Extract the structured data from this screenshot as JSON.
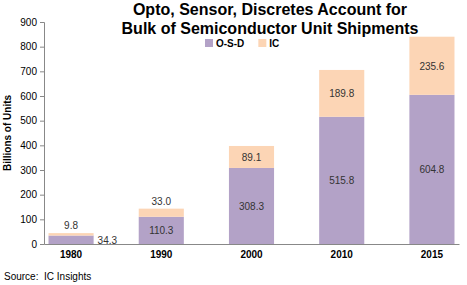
{
  "chart_data": {
    "type": "bar",
    "title": "Opto, Sensor, Discretes Account for Bulk of Semiconductor Unit Shipments",
    "y_label": "Billions of Units",
    "annotations": [
      "Source:  IC Insights"
    ],
    "categories": [
      "1980",
      "1990",
      "2000",
      "2010",
      "2015"
    ],
    "series": [
      {
        "name": "O-S-D",
        "color": "#b3a2c7",
        "values": [
          34.3,
          110.3,
          308.3,
          515.8,
          604.8
        ]
      },
      {
        "name": "IC",
        "color": "#fcd5b5",
        "values": [
          9.8,
          33.0,
          89.1,
          189.8,
          235.6
        ],
        "value_labels": [
          "9.8",
          "33.0",
          "89.1",
          "189.8",
          "235.6"
        ]
      }
    ],
    "stacked": true,
    "data_labels": true,
    "legend": "top",
    "grid": false,
    "ylim": [
      0,
      900
    ],
    "yticks": [
      0,
      100,
      200,
      300,
      400,
      500,
      600,
      700,
      800,
      900
    ]
  }
}
